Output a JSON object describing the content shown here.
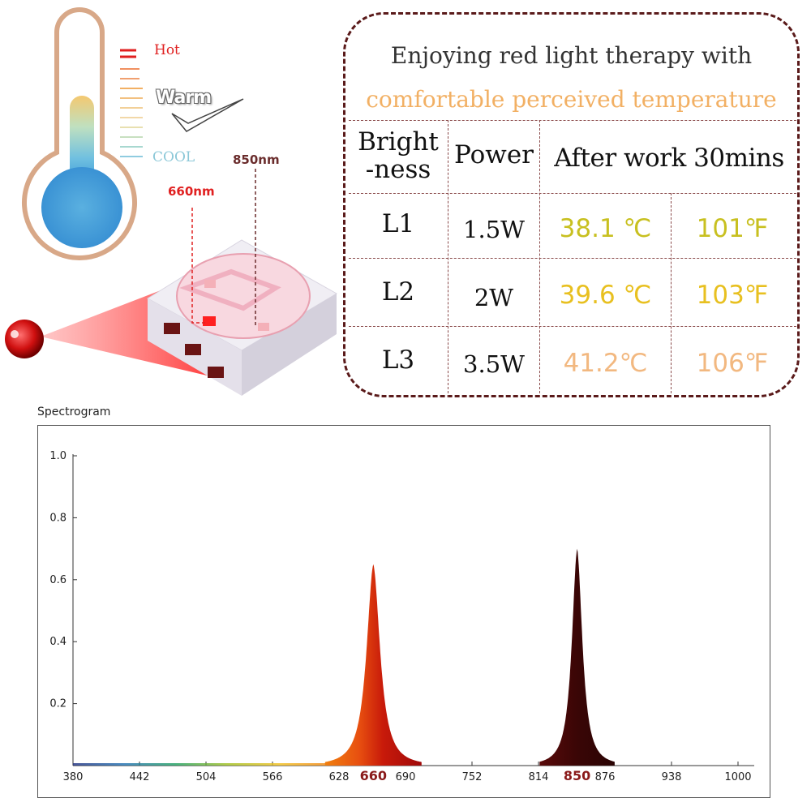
{
  "thermometer": {
    "hot_label": "Hot",
    "warm_label": "Warm",
    "cool_label": "COOL",
    "wavelength_660_label": "660nm",
    "wavelength_850_label": "850nm",
    "colors": {
      "hot": "#e02020",
      "warm": "#f2b064",
      "cool": "#8cc8d8",
      "bulb": "#3a9ad8"
    }
  },
  "panel": {
    "title_line1": "Enjoying red light therapy with",
    "title_line2": "comfortable perceived temperature",
    "headers": {
      "brightness_line1": "Bright",
      "brightness_line2": "-ness",
      "power": "Power",
      "after_work": "After work 30mins"
    },
    "rows": [
      {
        "level": "L1",
        "power": "1.5W",
        "celsius": "38.1 ℃",
        "fahrenheit": "101℉",
        "color": "#c8c020"
      },
      {
        "level": "L2",
        "power": "2W",
        "celsius": "39.6 ℃",
        "fahrenheit": "103℉",
        "color": "#e8c020"
      },
      {
        "level": "L3",
        "power": "3.5W",
        "celsius": "41.2℃",
        "fahrenheit": "106℉",
        "color": "#f2b880"
      }
    ]
  },
  "chart_data": {
    "type": "area",
    "title": "Spectrogram",
    "xlabel": "",
    "ylabel": "",
    "xlim": [
      380,
      1000
    ],
    "ylim": [
      0,
      1.0
    ],
    "x_ticks": [
      "380",
      "442",
      "504",
      "566",
      "628",
      "660",
      "690",
      "752",
      "814",
      "850",
      "876",
      "938",
      "1000"
    ],
    "highlight_ticks": [
      "660",
      "850"
    ],
    "y_ticks": [
      "0.2",
      "0.4",
      "0.6",
      "0.8",
      "1.0"
    ],
    "grid": false,
    "series": [
      {
        "peak_nm": 660,
        "peak_value": 0.65,
        "color": "#c01a0a"
      },
      {
        "peak_nm": 850,
        "peak_value": 0.7,
        "color": "#3a0606"
      }
    ]
  }
}
